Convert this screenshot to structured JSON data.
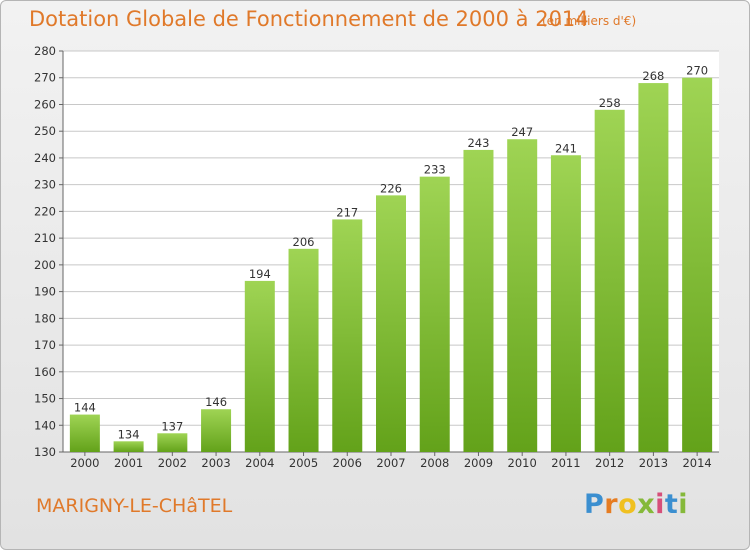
{
  "header": {
    "title": "Dotation Globale de Fonctionnement de 2000 à 2014",
    "unit": "(en milliers d'€)"
  },
  "footer": {
    "commune": "MARIGNY-LE-CHâTEL",
    "logo_letters": [
      "P",
      "r",
      "o",
      "x",
      "i",
      "t",
      "i"
    ]
  },
  "colors": {
    "title": "#e0792a",
    "bar_top": "#9fd454",
    "bar_bottom": "#63a21a",
    "grid": "#c8c8c8"
  },
  "chart_data": {
    "type": "bar",
    "categories": [
      "2000",
      "2001",
      "2002",
      "2003",
      "2004",
      "2005",
      "2006",
      "2007",
      "2008",
      "2009",
      "2010",
      "2011",
      "2012",
      "2013",
      "2014"
    ],
    "values": [
      144,
      134,
      137,
      146,
      194,
      206,
      217,
      226,
      233,
      243,
      247,
      241,
      258,
      268,
      270
    ],
    "ylim": [
      130,
      280
    ],
    "yticks": [
      130,
      140,
      150,
      160,
      170,
      180,
      190,
      200,
      210,
      220,
      230,
      240,
      250,
      260,
      270,
      280
    ],
    "grid": true,
    "data_labels": true
  }
}
